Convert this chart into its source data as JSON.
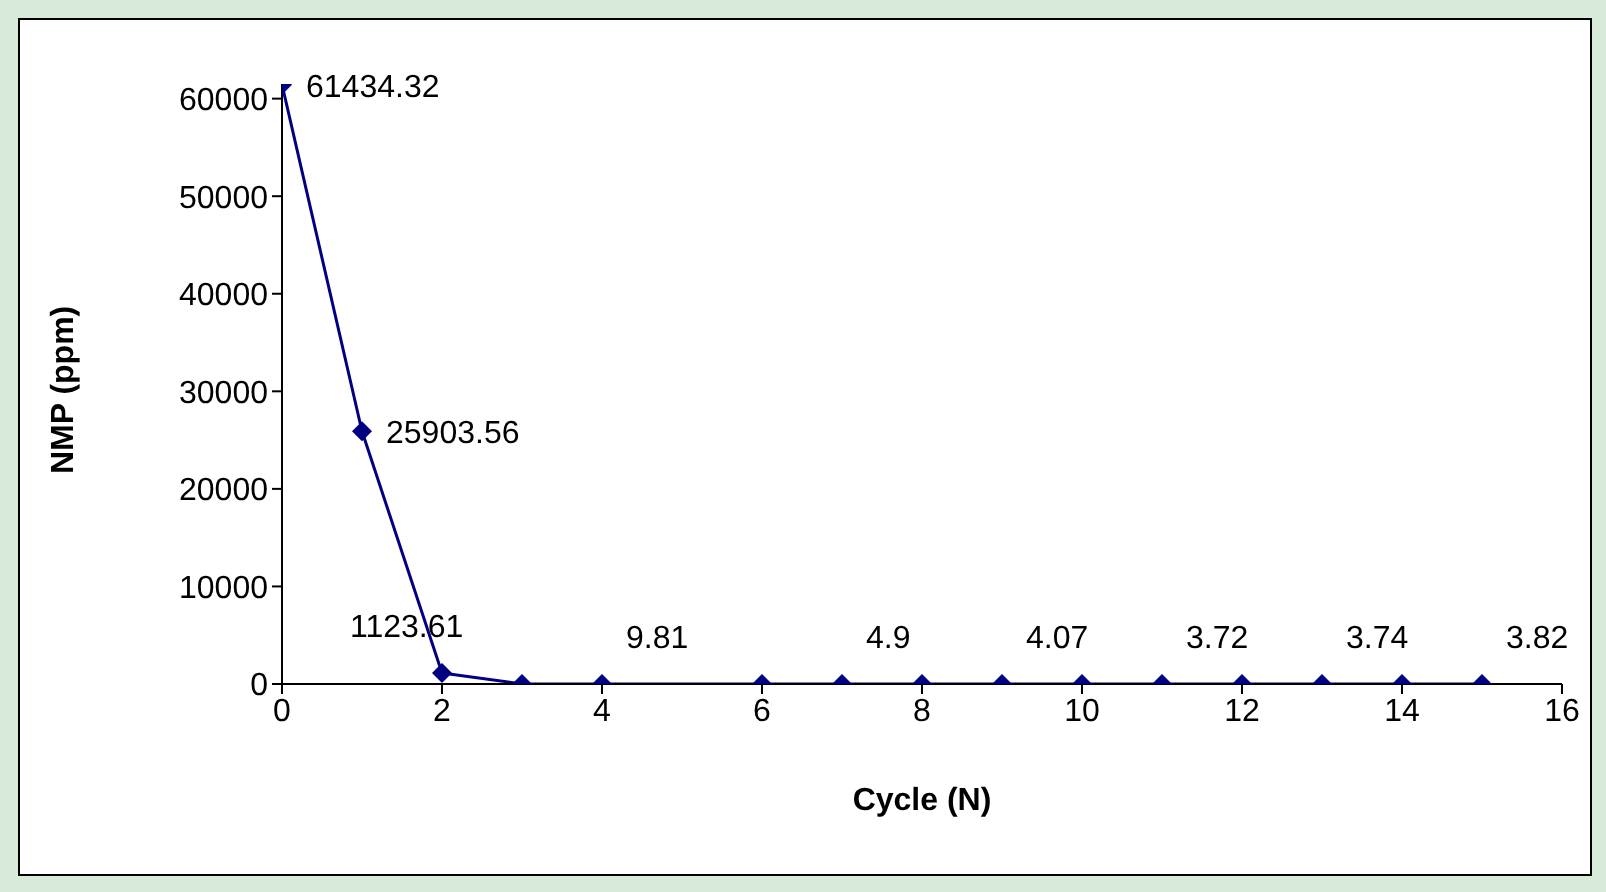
{
  "chart_data": {
    "type": "line",
    "xlabel": "Cycle (N)",
    "ylabel": "NMP (ppm)",
    "x": [
      0,
      1,
      2,
      3,
      4,
      6,
      7,
      8,
      9,
      10,
      11,
      12,
      13,
      14,
      15
    ],
    "series": [
      {
        "color": "#000080",
        "values": [
          61434.32,
          25903.56,
          1123.61,
          0,
          9.81,
          0,
          4.9,
          0,
          4.07,
          0,
          3.72,
          0,
          3.74,
          0,
          3.82
        ],
        "value_labels": [
          "61434.32",
          "25903.56",
          "1123.61",
          null,
          "9.81",
          null,
          "4.9",
          null,
          "4.07",
          null,
          "3.72",
          null,
          "3.74",
          null,
          "3.82"
        ]
      }
    ],
    "xlim": [
      0,
      16
    ],
    "xticks": [
      0,
      2,
      4,
      6,
      8,
      10,
      12,
      14,
      16
    ],
    "ylim": [
      0,
      61500
    ],
    "yticks": [
      0,
      10000,
      20000,
      30000,
      40000,
      50000,
      60000
    ],
    "marker": "diamond",
    "line_style": "solid",
    "grid": false,
    "legend": false
  }
}
